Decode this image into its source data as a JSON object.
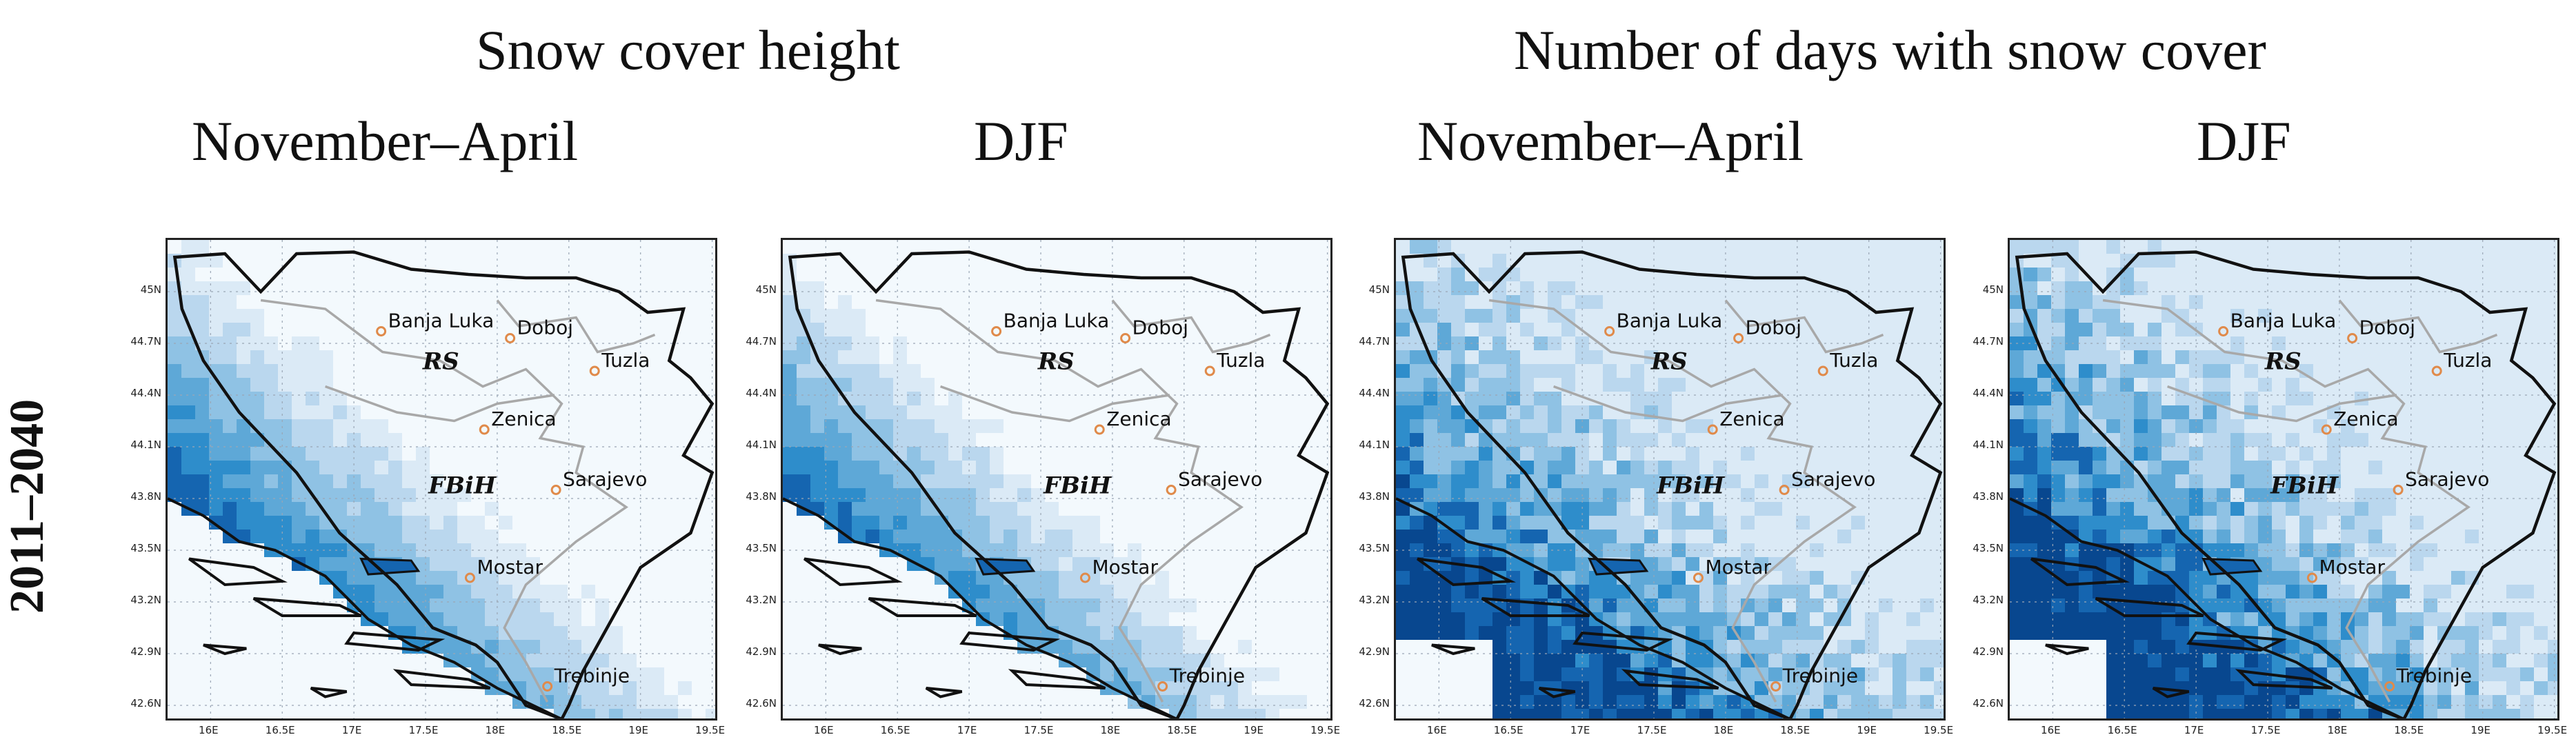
{
  "titles": {
    "group_left": "Snow cover height",
    "group_right": "Number of days with snow cover",
    "panel1": "November–April",
    "panel2": "DJF",
    "panel3": "November–April",
    "panel4": "DJF",
    "row_label": "2011–2040"
  },
  "axes": {
    "lat_ticks": [
      "45N",
      "44.7N",
      "44.4N",
      "44.1N",
      "43.8N",
      "43.5N",
      "43.2N",
      "42.9N",
      "42.6N"
    ],
    "lon_ticks": [
      "16E",
      "16.5E",
      "17E",
      "17.5E",
      "18E",
      "18.5E",
      "19E",
      "19.5E"
    ]
  },
  "map": {
    "cities": [
      {
        "name": "Banja Luka",
        "lon": 17.19,
        "lat": 44.77
      },
      {
        "name": "Doboj",
        "lon": 18.09,
        "lat": 44.73
      },
      {
        "name": "Tuzla",
        "lon": 18.68,
        "lat": 44.54
      },
      {
        "name": "Zenica",
        "lon": 17.91,
        "lat": 44.2
      },
      {
        "name": "Sarajevo",
        "lon": 18.41,
        "lat": 43.85
      },
      {
        "name": "Mostar",
        "lon": 17.81,
        "lat": 43.34
      },
      {
        "name": "Trebinje",
        "lon": 18.35,
        "lat": 42.71
      }
    ],
    "entities": [
      {
        "name": "RS",
        "lon": 17.48,
        "lat": 44.55
      },
      {
        "name": "FBiH",
        "lon": 17.52,
        "lat": 43.83
      }
    ],
    "colors": {
      "ramp": [
        "#f3f9fd",
        "#dbeaf6",
        "#bad7ee",
        "#8fc2e4",
        "#5ea8d7",
        "#2e8dcb",
        "#1565b0",
        "#08478f"
      ],
      "city_marker": "#e08a4a",
      "border": "#111111",
      "entity_line": "#a8a8a8",
      "grid": "#9aa6b5"
    }
  }
}
